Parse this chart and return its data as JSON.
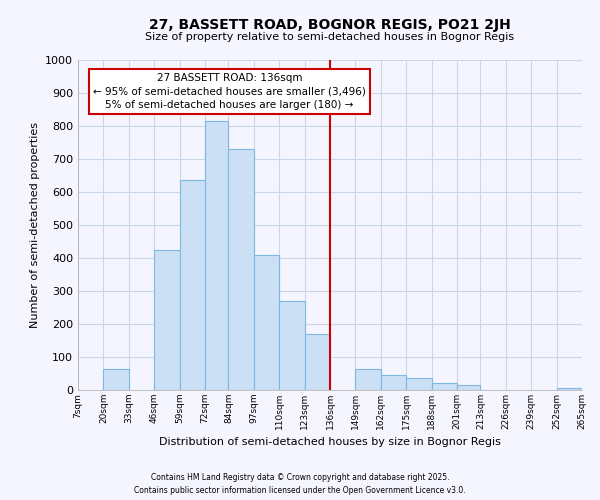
{
  "title": "27, BASSETT ROAD, BOGNOR REGIS, PO21 2JH",
  "subtitle": "Size of property relative to semi-detached houses in Bognor Regis",
  "xlabel": "Distribution of semi-detached houses by size in Bognor Regis",
  "ylabel": "Number of semi-detached properties",
  "bin_edges": [
    7,
    20,
    33,
    46,
    59,
    72,
    84,
    97,
    110,
    123,
    136,
    149,
    162,
    175,
    188,
    201,
    213,
    226,
    239,
    252,
    265
  ],
  "bin_labels": [
    "7sqm",
    "20sqm",
    "33sqm",
    "46sqm",
    "59sqm",
    "72sqm",
    "84sqm",
    "97sqm",
    "110sqm",
    "123sqm",
    "136sqm",
    "149sqm",
    "162sqm",
    "175sqm",
    "188sqm",
    "201sqm",
    "213sqm",
    "226sqm",
    "239sqm",
    "252sqm",
    "265sqm"
  ],
  "counts": [
    0,
    65,
    0,
    425,
    635,
    815,
    730,
    410,
    270,
    170,
    0,
    65,
    45,
    35,
    20,
    15,
    0,
    0,
    0,
    5
  ],
  "bar_color": "#cce0f5",
  "bar_edge_color": "#7db8e0",
  "vline_x": 136,
  "vline_color": "#cc0000",
  "annotation_title": "27 BASSETT ROAD: 136sqm",
  "annotation_line1": "← 95% of semi-detached houses are smaller (3,496)",
  "annotation_line2": "5% of semi-detached houses are larger (180) →",
  "annotation_box_color": "#ffffff",
  "annotation_box_edge": "#cc0000",
  "ylim": [
    0,
    1000
  ],
  "yticks": [
    0,
    100,
    200,
    300,
    400,
    500,
    600,
    700,
    800,
    900,
    1000
  ],
  "footer1": "Contains HM Land Registry data © Crown copyright and database right 2025.",
  "footer2": "Contains public sector information licensed under the Open Government Licence v3.0.",
  "bg_color": "#f5f5ff",
  "grid_color": "#c8d8ea"
}
